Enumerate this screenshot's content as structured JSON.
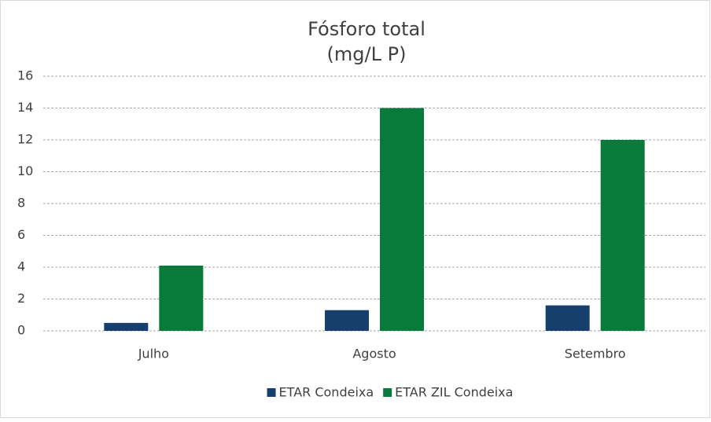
{
  "chart_data": {
    "type": "bar",
    "title": "Fósforo total",
    "subtitle": "(mg/L P)",
    "categories": [
      "Julho",
      "Agosto",
      "Setembro"
    ],
    "series": [
      {
        "name": "ETAR Condeixa",
        "color": "#173f6e",
        "values": [
          0.5,
          1.3,
          1.6
        ]
      },
      {
        "name": "ETAR ZIL Condeixa",
        "color": "#087a3a",
        "values": [
          4.1,
          14,
          12
        ]
      }
    ],
    "ylim": [
      0,
      16
    ],
    "yticks": [
      0,
      2,
      4,
      6,
      8,
      10,
      12,
      14,
      16
    ],
    "grid": true,
    "legend": "bottom"
  }
}
